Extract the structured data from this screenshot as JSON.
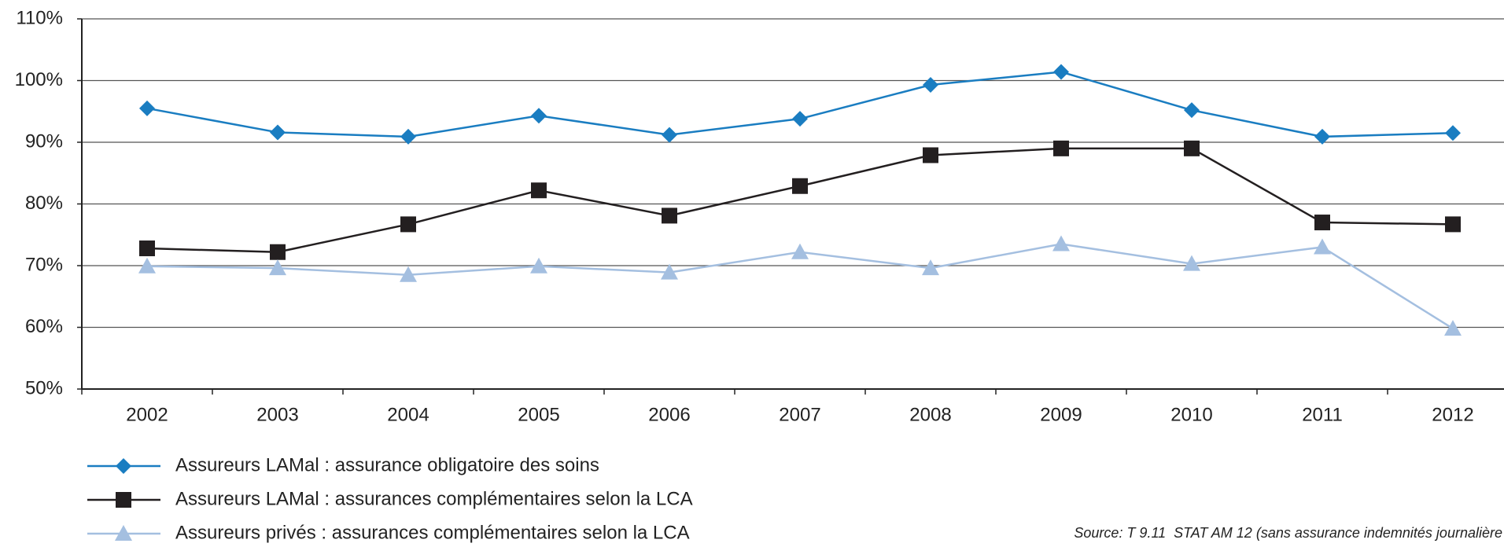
{
  "chart_data": {
    "type": "line",
    "categories": [
      "2002",
      "2003",
      "2004",
      "2005",
      "2006",
      "2007",
      "2008",
      "2009",
      "2010",
      "2011",
      "2012"
    ],
    "series": [
      {
        "name": "Assureurs LAMal : assurance obligatoire des soins",
        "color": "#1a7dc1",
        "marker": "diamond",
        "values": [
          95.5,
          91.6,
          90.9,
          94.3,
          91.2,
          93.8,
          99.3,
          101.4,
          95.2,
          90.9,
          91.5
        ]
      },
      {
        "name": "Assureurs LAMal : assurances complémentaires selon la LCA",
        "color": "#231f20",
        "marker": "square",
        "values": [
          72.8,
          72.2,
          76.7,
          82.2,
          78.1,
          82.9,
          87.9,
          89.0,
          89.0,
          77.0,
          76.7
        ]
      },
      {
        "name": "Assureurs privés : assurances complémentaires selon la LCA",
        "color": "#a4bfe0",
        "marker": "triangle",
        "values": [
          69.9,
          69.6,
          68.5,
          69.9,
          68.9,
          72.2,
          69.6,
          73.5,
          70.3,
          73.0,
          59.8
        ]
      }
    ],
    "ylim": [
      50,
      110
    ],
    "yticks": [
      {
        "value": 50,
        "label": "50%"
      },
      {
        "value": 60,
        "label": "60%"
      },
      {
        "value": 70,
        "label": "70%"
      },
      {
        "value": 80,
        "label": "80%"
      },
      {
        "value": 90,
        "label": "90%"
      },
      {
        "value": 100,
        "label": "100%"
      },
      {
        "value": 110,
        "label": "110%"
      }
    ],
    "grid": true,
    "legend": "bottom-left",
    "source": "Source: T 9.11  STAT AM 12 (sans assurance indemnités journalière"
  }
}
